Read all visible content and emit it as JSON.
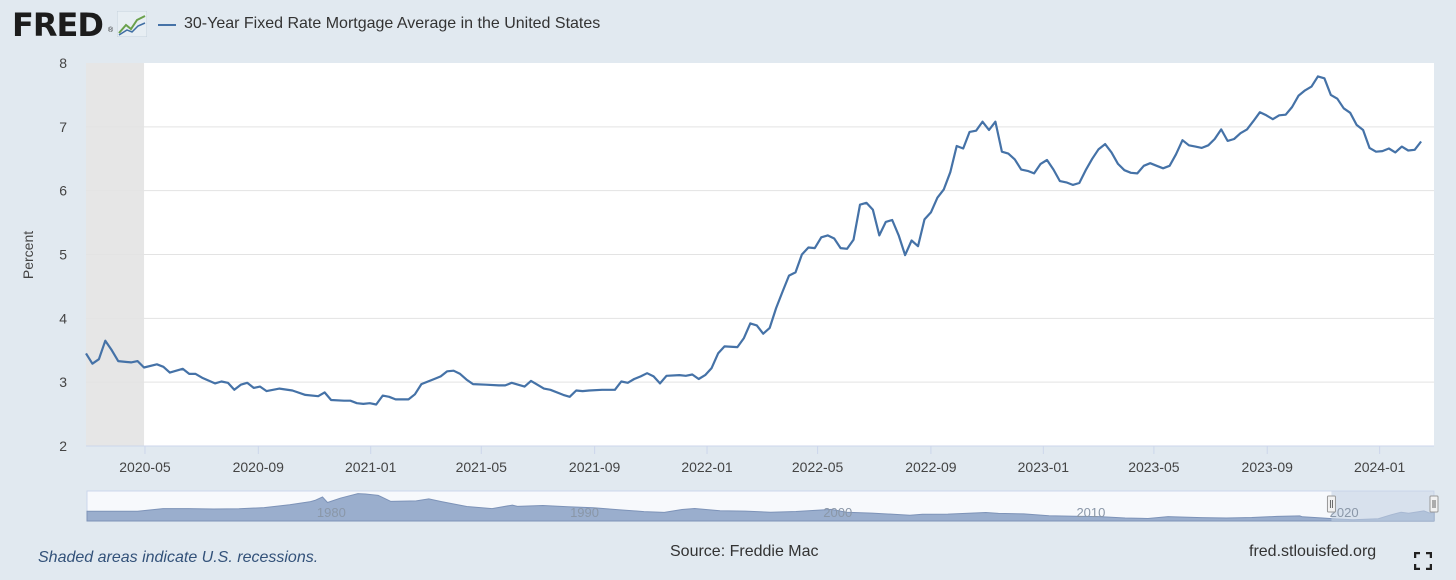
{
  "header": {
    "logo_text": "FRED",
    "logo_mark": "®",
    "logo_icon": "trend-chart-icon",
    "series_title": "30-Year Fixed Rate Mortgage Average in the United States"
  },
  "colors": {
    "line": "#4572a7",
    "recession_shade": "#e6e6e6",
    "navigator_fill": "#9aaecd",
    "navigator_selected": "#c3d0e3",
    "background": "#e1e9f0"
  },
  "chart_data": {
    "type": "line",
    "ylabel": "Percent",
    "xlabel": "",
    "ylim": [
      2,
      8
    ],
    "yticks": [
      2,
      3,
      4,
      5,
      6,
      7,
      8
    ],
    "xlim": [
      "2020-02-27",
      "2024-02-29"
    ],
    "xticks": [
      "2020-05",
      "2020-09",
      "2021-01",
      "2021-05",
      "2021-09",
      "2022-01",
      "2022-05",
      "2022-09",
      "2023-01",
      "2023-05",
      "2023-09",
      "2024-01"
    ],
    "grid": true,
    "recession_band": [
      "2020-02-01",
      "2020-04-30"
    ],
    "series": [
      {
        "points": [
          [
            "2020-02-27",
            3.45
          ],
          [
            "2020-03-05",
            3.29
          ],
          [
            "2020-03-12",
            3.36
          ],
          [
            "2020-03-19",
            3.65
          ],
          [
            "2020-03-26",
            3.5
          ],
          [
            "2020-04-02",
            3.33
          ],
          [
            "2020-04-16",
            3.31
          ],
          [
            "2020-04-23",
            3.33
          ],
          [
            "2020-04-30",
            3.23
          ],
          [
            "2020-05-14",
            3.28
          ],
          [
            "2020-05-21",
            3.24
          ],
          [
            "2020-05-28",
            3.15
          ],
          [
            "2020-06-11",
            3.21
          ],
          [
            "2020-06-18",
            3.13
          ],
          [
            "2020-06-25",
            3.13
          ],
          [
            "2020-07-02",
            3.07
          ],
          [
            "2020-07-16",
            2.98
          ],
          [
            "2020-07-23",
            3.01
          ],
          [
            "2020-07-30",
            2.99
          ],
          [
            "2020-08-06",
            2.88
          ],
          [
            "2020-08-13",
            2.96
          ],
          [
            "2020-08-20",
            2.99
          ],
          [
            "2020-08-27",
            2.91
          ],
          [
            "2020-09-03",
            2.93
          ],
          [
            "2020-09-10",
            2.86
          ],
          [
            "2020-09-24",
            2.9
          ],
          [
            "2020-10-08",
            2.87
          ],
          [
            "2020-10-22",
            2.8
          ],
          [
            "2020-11-05",
            2.78
          ],
          [
            "2020-11-12",
            2.84
          ],
          [
            "2020-11-19",
            2.72
          ],
          [
            "2020-12-03",
            2.71
          ],
          [
            "2020-12-10",
            2.71
          ],
          [
            "2020-12-17",
            2.67
          ],
          [
            "2020-12-24",
            2.66
          ],
          [
            "2020-12-31",
            2.67
          ],
          [
            "2021-01-07",
            2.65
          ],
          [
            "2021-01-14",
            2.79
          ],
          [
            "2021-01-21",
            2.77
          ],
          [
            "2021-01-28",
            2.73
          ],
          [
            "2021-02-11",
            2.73
          ],
          [
            "2021-02-18",
            2.81
          ],
          [
            "2021-02-25",
            2.97
          ],
          [
            "2021-03-11",
            3.05
          ],
          [
            "2021-03-18",
            3.09
          ],
          [
            "2021-03-25",
            3.17
          ],
          [
            "2021-04-01",
            3.18
          ],
          [
            "2021-04-08",
            3.13
          ],
          [
            "2021-04-15",
            3.04
          ],
          [
            "2021-04-22",
            2.97
          ],
          [
            "2021-05-06",
            2.96
          ],
          [
            "2021-05-20",
            2.95
          ],
          [
            "2021-05-27",
            2.95
          ],
          [
            "2021-06-03",
            2.99
          ],
          [
            "2021-06-10",
            2.96
          ],
          [
            "2021-06-17",
            2.93
          ],
          [
            "2021-06-24",
            3.02
          ],
          [
            "2021-07-08",
            2.9
          ],
          [
            "2021-07-15",
            2.88
          ],
          [
            "2021-07-29",
            2.8
          ],
          [
            "2021-08-05",
            2.77
          ],
          [
            "2021-08-12",
            2.87
          ],
          [
            "2021-08-19",
            2.86
          ],
          [
            "2021-08-26",
            2.87
          ],
          [
            "2021-09-09",
            2.88
          ],
          [
            "2021-09-23",
            2.88
          ],
          [
            "2021-09-30",
            3.01
          ],
          [
            "2021-10-07",
            2.99
          ],
          [
            "2021-10-14",
            3.05
          ],
          [
            "2021-10-21",
            3.09
          ],
          [
            "2021-10-28",
            3.14
          ],
          [
            "2021-11-04",
            3.09
          ],
          [
            "2021-11-11",
            2.98
          ],
          [
            "2021-11-18",
            3.1
          ],
          [
            "2021-12-02",
            3.11
          ],
          [
            "2021-12-09",
            3.1
          ],
          [
            "2021-12-16",
            3.12
          ],
          [
            "2021-12-23",
            3.05
          ],
          [
            "2021-12-30",
            3.11
          ],
          [
            "2022-01-06",
            3.22
          ],
          [
            "2022-01-13",
            3.45
          ],
          [
            "2022-01-20",
            3.56
          ],
          [
            "2022-02-03",
            3.55
          ],
          [
            "2022-02-10",
            3.69
          ],
          [
            "2022-02-17",
            3.92
          ],
          [
            "2022-02-24",
            3.89
          ],
          [
            "2022-03-03",
            3.76
          ],
          [
            "2022-03-10",
            3.85
          ],
          [
            "2022-03-17",
            4.16
          ],
          [
            "2022-03-24",
            4.42
          ],
          [
            "2022-03-31",
            4.67
          ],
          [
            "2022-04-07",
            4.72
          ],
          [
            "2022-04-14",
            5.0
          ],
          [
            "2022-04-21",
            5.11
          ],
          [
            "2022-04-28",
            5.1
          ],
          [
            "2022-05-05",
            5.27
          ],
          [
            "2022-05-12",
            5.3
          ],
          [
            "2022-05-19",
            5.25
          ],
          [
            "2022-05-26",
            5.1
          ],
          [
            "2022-06-02",
            5.09
          ],
          [
            "2022-06-09",
            5.23
          ],
          [
            "2022-06-16",
            5.78
          ],
          [
            "2022-06-23",
            5.81
          ],
          [
            "2022-06-30",
            5.7
          ],
          [
            "2022-07-07",
            5.3
          ],
          [
            "2022-07-14",
            5.51
          ],
          [
            "2022-07-21",
            5.54
          ],
          [
            "2022-07-28",
            5.3
          ],
          [
            "2022-08-04",
            4.99
          ],
          [
            "2022-08-11",
            5.22
          ],
          [
            "2022-08-18",
            5.13
          ],
          [
            "2022-08-25",
            5.55
          ],
          [
            "2022-09-01",
            5.66
          ],
          [
            "2022-09-08",
            5.89
          ],
          [
            "2022-09-15",
            6.02
          ],
          [
            "2022-09-22",
            6.29
          ],
          [
            "2022-09-29",
            6.7
          ],
          [
            "2022-10-06",
            6.66
          ],
          [
            "2022-10-13",
            6.92
          ],
          [
            "2022-10-20",
            6.94
          ],
          [
            "2022-10-27",
            7.08
          ],
          [
            "2022-11-03",
            6.95
          ],
          [
            "2022-11-10",
            7.08
          ],
          [
            "2022-11-17",
            6.61
          ],
          [
            "2022-11-24",
            6.58
          ],
          [
            "2022-12-01",
            6.49
          ],
          [
            "2022-12-08",
            6.33
          ],
          [
            "2022-12-15",
            6.31
          ],
          [
            "2022-12-22",
            6.27
          ],
          [
            "2022-12-29",
            6.42
          ],
          [
            "2023-01-05",
            6.48
          ],
          [
            "2023-01-12",
            6.33
          ],
          [
            "2023-01-19",
            6.15
          ],
          [
            "2023-01-26",
            6.13
          ],
          [
            "2023-02-02",
            6.09
          ],
          [
            "2023-02-09",
            6.12
          ],
          [
            "2023-02-16",
            6.32
          ],
          [
            "2023-02-23",
            6.5
          ],
          [
            "2023-03-02",
            6.65
          ],
          [
            "2023-03-09",
            6.73
          ],
          [
            "2023-03-16",
            6.6
          ],
          [
            "2023-03-23",
            6.42
          ],
          [
            "2023-03-30",
            6.32
          ],
          [
            "2023-04-06",
            6.28
          ],
          [
            "2023-04-13",
            6.27
          ],
          [
            "2023-04-20",
            6.39
          ],
          [
            "2023-04-27",
            6.43
          ],
          [
            "2023-05-04",
            6.39
          ],
          [
            "2023-05-11",
            6.35
          ],
          [
            "2023-05-18",
            6.39
          ],
          [
            "2023-05-25",
            6.57
          ],
          [
            "2023-06-01",
            6.79
          ],
          [
            "2023-06-08",
            6.71
          ],
          [
            "2023-06-15",
            6.69
          ],
          [
            "2023-06-22",
            6.67
          ],
          [
            "2023-06-29",
            6.71
          ],
          [
            "2023-07-06",
            6.81
          ],
          [
            "2023-07-13",
            6.96
          ],
          [
            "2023-07-20",
            6.78
          ],
          [
            "2023-07-27",
            6.81
          ],
          [
            "2023-08-03",
            6.9
          ],
          [
            "2023-08-10",
            6.96
          ],
          [
            "2023-08-17",
            7.09
          ],
          [
            "2023-08-24",
            7.23
          ],
          [
            "2023-08-31",
            7.18
          ],
          [
            "2023-09-07",
            7.12
          ],
          [
            "2023-09-14",
            7.18
          ],
          [
            "2023-09-21",
            7.19
          ],
          [
            "2023-09-28",
            7.31
          ],
          [
            "2023-10-05",
            7.49
          ],
          [
            "2023-10-12",
            7.57
          ],
          [
            "2023-10-19",
            7.63
          ],
          [
            "2023-10-26",
            7.79
          ],
          [
            "2023-11-02",
            7.76
          ],
          [
            "2023-11-09",
            7.5
          ],
          [
            "2023-11-16",
            7.44
          ],
          [
            "2023-11-23",
            7.29
          ],
          [
            "2023-11-30",
            7.22
          ],
          [
            "2023-12-07",
            7.03
          ],
          [
            "2023-12-14",
            6.95
          ],
          [
            "2023-12-21",
            6.67
          ],
          [
            "2023-12-28",
            6.61
          ],
          [
            "2024-01-04",
            6.62
          ],
          [
            "2024-01-11",
            6.66
          ],
          [
            "2024-01-18",
            6.6
          ],
          [
            "2024-01-25",
            6.69
          ],
          [
            "2024-02-01",
            6.63
          ],
          [
            "2024-02-08",
            6.64
          ],
          [
            "2024-02-15",
            6.77
          ]
        ]
      }
    ],
    "navigator": {
      "labels": [
        "1980",
        "1990",
        "2000",
        "2010",
        "2020"
      ],
      "xlim": [
        1971,
        2024.2
      ],
      "selection": [
        2020.15,
        2024.2
      ],
      "ylim": [
        2,
        19
      ],
      "points": [
        [
          1971,
          7.5
        ],
        [
          1973,
          7.5
        ],
        [
          1974,
          9.0
        ],
        [
          1975,
          9.0
        ],
        [
          1976,
          8.8
        ],
        [
          1977,
          8.9
        ],
        [
          1978,
          9.6
        ],
        [
          1979,
          11.2
        ],
        [
          1979.8,
          12.9
        ],
        [
          1980.0,
          13.7
        ],
        [
          1980.3,
          15.6
        ],
        [
          1980.5,
          12.5
        ],
        [
          1981.0,
          14.9
        ],
        [
          1981.7,
          17.5
        ],
        [
          1982.0,
          17.3
        ],
        [
          1982.5,
          16.5
        ],
        [
          1983.0,
          13.1
        ],
        [
          1984.0,
          13.4
        ],
        [
          1984.5,
          14.5
        ],
        [
          1985.0,
          13.0
        ],
        [
          1986.0,
          10.2
        ],
        [
          1987.0,
          9.0
        ],
        [
          1987.8,
          11.0
        ],
        [
          1988.0,
          10.3
        ],
        [
          1989.0,
          10.8
        ],
        [
          1990.0,
          10.1
        ],
        [
          1991.0,
          9.5
        ],
        [
          1992.0,
          8.4
        ],
        [
          1993.0,
          7.3
        ],
        [
          1993.8,
          6.9
        ],
        [
          1994.5,
          8.5
        ],
        [
          1995.0,
          9.1
        ],
        [
          1996.0,
          7.8
        ],
        [
          1997.0,
          7.6
        ],
        [
          1998.0,
          7.0
        ],
        [
          1999.0,
          7.4
        ],
        [
          2000.4,
          8.6
        ],
        [
          2001.0,
          7.0
        ],
        [
          2002.0,
          6.5
        ],
        [
          2003.5,
          5.3
        ],
        [
          2004.0,
          5.8
        ],
        [
          2005.0,
          5.9
        ],
        [
          2006.5,
          6.8
        ],
        [
          2007.0,
          6.3
        ],
        [
          2008.0,
          6.0
        ],
        [
          2009.0,
          5.0
        ],
        [
          2010.0,
          4.7
        ],
        [
          2011.0,
          4.5
        ],
        [
          2012.0,
          3.7
        ],
        [
          2012.9,
          3.4
        ],
        [
          2013.7,
          4.5
        ],
        [
          2014.0,
          4.3
        ],
        [
          2015.0,
          3.9
        ],
        [
          2016.0,
          3.7
        ],
        [
          2017.0,
          4.0
        ],
        [
          2018.0,
          4.6
        ],
        [
          2018.9,
          4.9
        ],
        [
          2019.0,
          4.4
        ],
        [
          2019.8,
          3.7
        ],
        [
          2020.3,
          3.2
        ],
        [
          2021.0,
          2.7
        ],
        [
          2021.5,
          3.0
        ],
        [
          2022.0,
          3.3
        ],
        [
          2022.5,
          5.5
        ],
        [
          2022.9,
          7.0
        ],
        [
          2023.2,
          6.4
        ],
        [
          2023.8,
          7.7
        ],
        [
          2024.0,
          6.6
        ],
        [
          2024.2,
          6.8
        ]
      ]
    }
  },
  "footer": {
    "recession_note": "Shaded areas indicate U.S. recessions.",
    "source": "Source: Freddie Mac",
    "url": "fred.stlouisfed.org",
    "fullscreen_icon": "fullscreen-icon"
  }
}
